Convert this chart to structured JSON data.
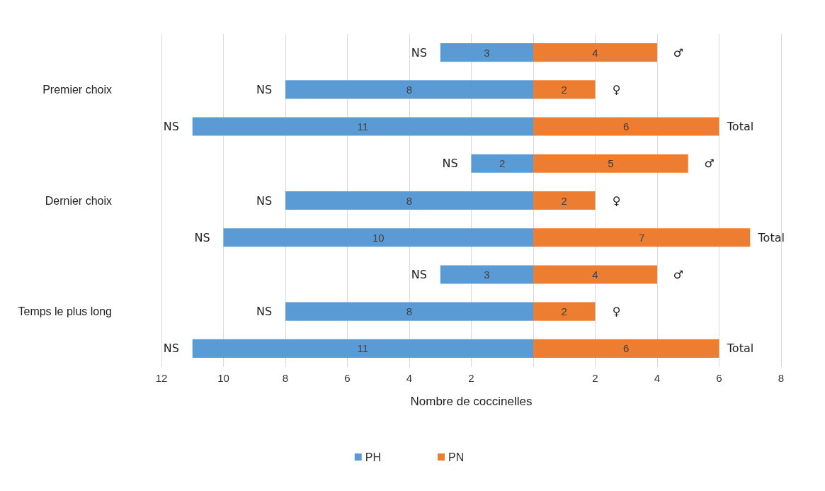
{
  "chart_data": {
    "type": "bar",
    "orientation": "horizontal",
    "categories": [
      null,
      "Premier choix",
      null,
      null,
      "Dernier choix",
      null,
      null,
      "Temps le plus long",
      null
    ],
    "series": [
      {
        "name": "PH",
        "color": "#5b9bd5",
        "base": [
          -3,
          -8,
          -11,
          -2,
          -8,
          -10,
          -3,
          -8,
          -11
        ],
        "values": [
          3,
          8,
          11,
          2,
          8,
          10,
          3,
          8,
          11
        ],
        "value_labels": [
          "3",
          "8",
          "11",
          "2",
          "8",
          "10",
          "3",
          "8",
          "11"
        ]
      },
      {
        "name": "PN",
        "color": "#ed7d31",
        "values": [
          4,
          2,
          6,
          5,
          2,
          7,
          4,
          2,
          6
        ],
        "value_labels": [
          "4",
          "2",
          "6",
          "5",
          "2",
          "7",
          "4",
          "2",
          "6"
        ]
      }
    ],
    "xlim": [
      -12,
      8
    ],
    "xticks": [
      {
        "value": -12,
        "label": "12"
      },
      {
        "value": -10,
        "label": "10"
      },
      {
        "value": -8,
        "label": "8"
      },
      {
        "value": -6,
        "label": "6"
      },
      {
        "value": -4,
        "label": "4"
      },
      {
        "value": -2,
        "label": "2"
      },
      {
        "value": 0,
        "label": null
      },
      2,
      4,
      6,
      8
    ],
    "xlabel": "Nombre de coccinelles",
    "grid": "x",
    "legend": "bottom",
    "annotations": [
      "NS",
      "NS",
      "NS",
      "NS",
      "NS",
      "NS",
      "NS",
      "NS",
      "NS",
      "♂",
      "♀",
      "Total",
      "♂",
      "♀",
      "Total",
      "♂",
      "♀",
      "Total"
    ]
  }
}
